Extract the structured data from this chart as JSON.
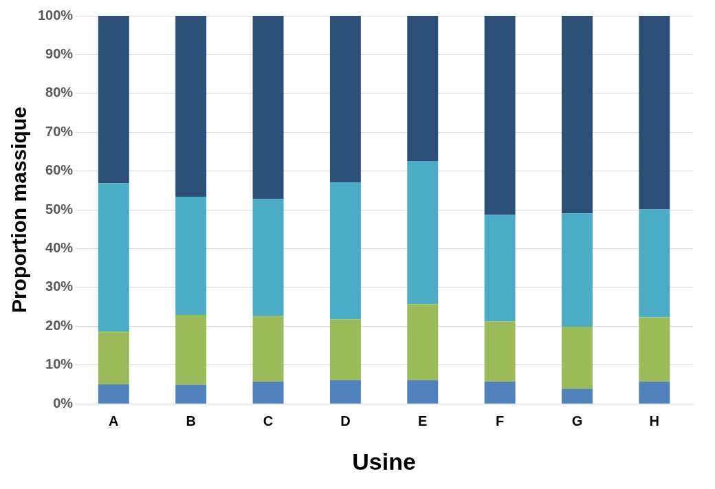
{
  "chart_data": {
    "type": "bar",
    "stacked": true,
    "xlabel": "Usine",
    "ylabel": "Proportion massique",
    "categories": [
      "A",
      "B",
      "C",
      "D",
      "E",
      "F",
      "G",
      "H"
    ],
    "series": [
      {
        "color": "#4f81bd",
        "values": [
          5.0,
          4.9,
          5.7,
          6.1,
          6.1,
          5.7,
          3.9,
          5.7
        ]
      },
      {
        "color": "#9bbb59",
        "values": [
          13.6,
          18.0,
          17.0,
          15.7,
          19.6,
          15.5,
          16.0,
          16.6
        ]
      },
      {
        "color": "#4bacc6",
        "values": [
          38.3,
          30.5,
          30.1,
          35.3,
          36.9,
          27.5,
          29.2,
          27.8
        ]
      },
      {
        "color": "#2c4f77",
        "values": [
          43.1,
          46.6,
          47.2,
          42.9,
          37.4,
          51.3,
          50.9,
          49.9
        ]
      }
    ],
    "ylim": [
      0,
      100
    ],
    "yticks": [
      {
        "value": 0,
        "label": "0%"
      },
      {
        "value": 10,
        "label": "10%"
      },
      {
        "value": 20,
        "label": "20%"
      },
      {
        "value": 30,
        "label": "30%"
      },
      {
        "value": 40,
        "label": "40%"
      },
      {
        "value": 50,
        "label": "50%"
      },
      {
        "value": 60,
        "label": "60%"
      },
      {
        "value": 70,
        "label": "70%"
      },
      {
        "value": 80,
        "label": "80%"
      },
      {
        "value": 90,
        "label": "90%"
      },
      {
        "value": 100,
        "label": "100%"
      }
    ],
    "grid": "y",
    "legend": false
  }
}
